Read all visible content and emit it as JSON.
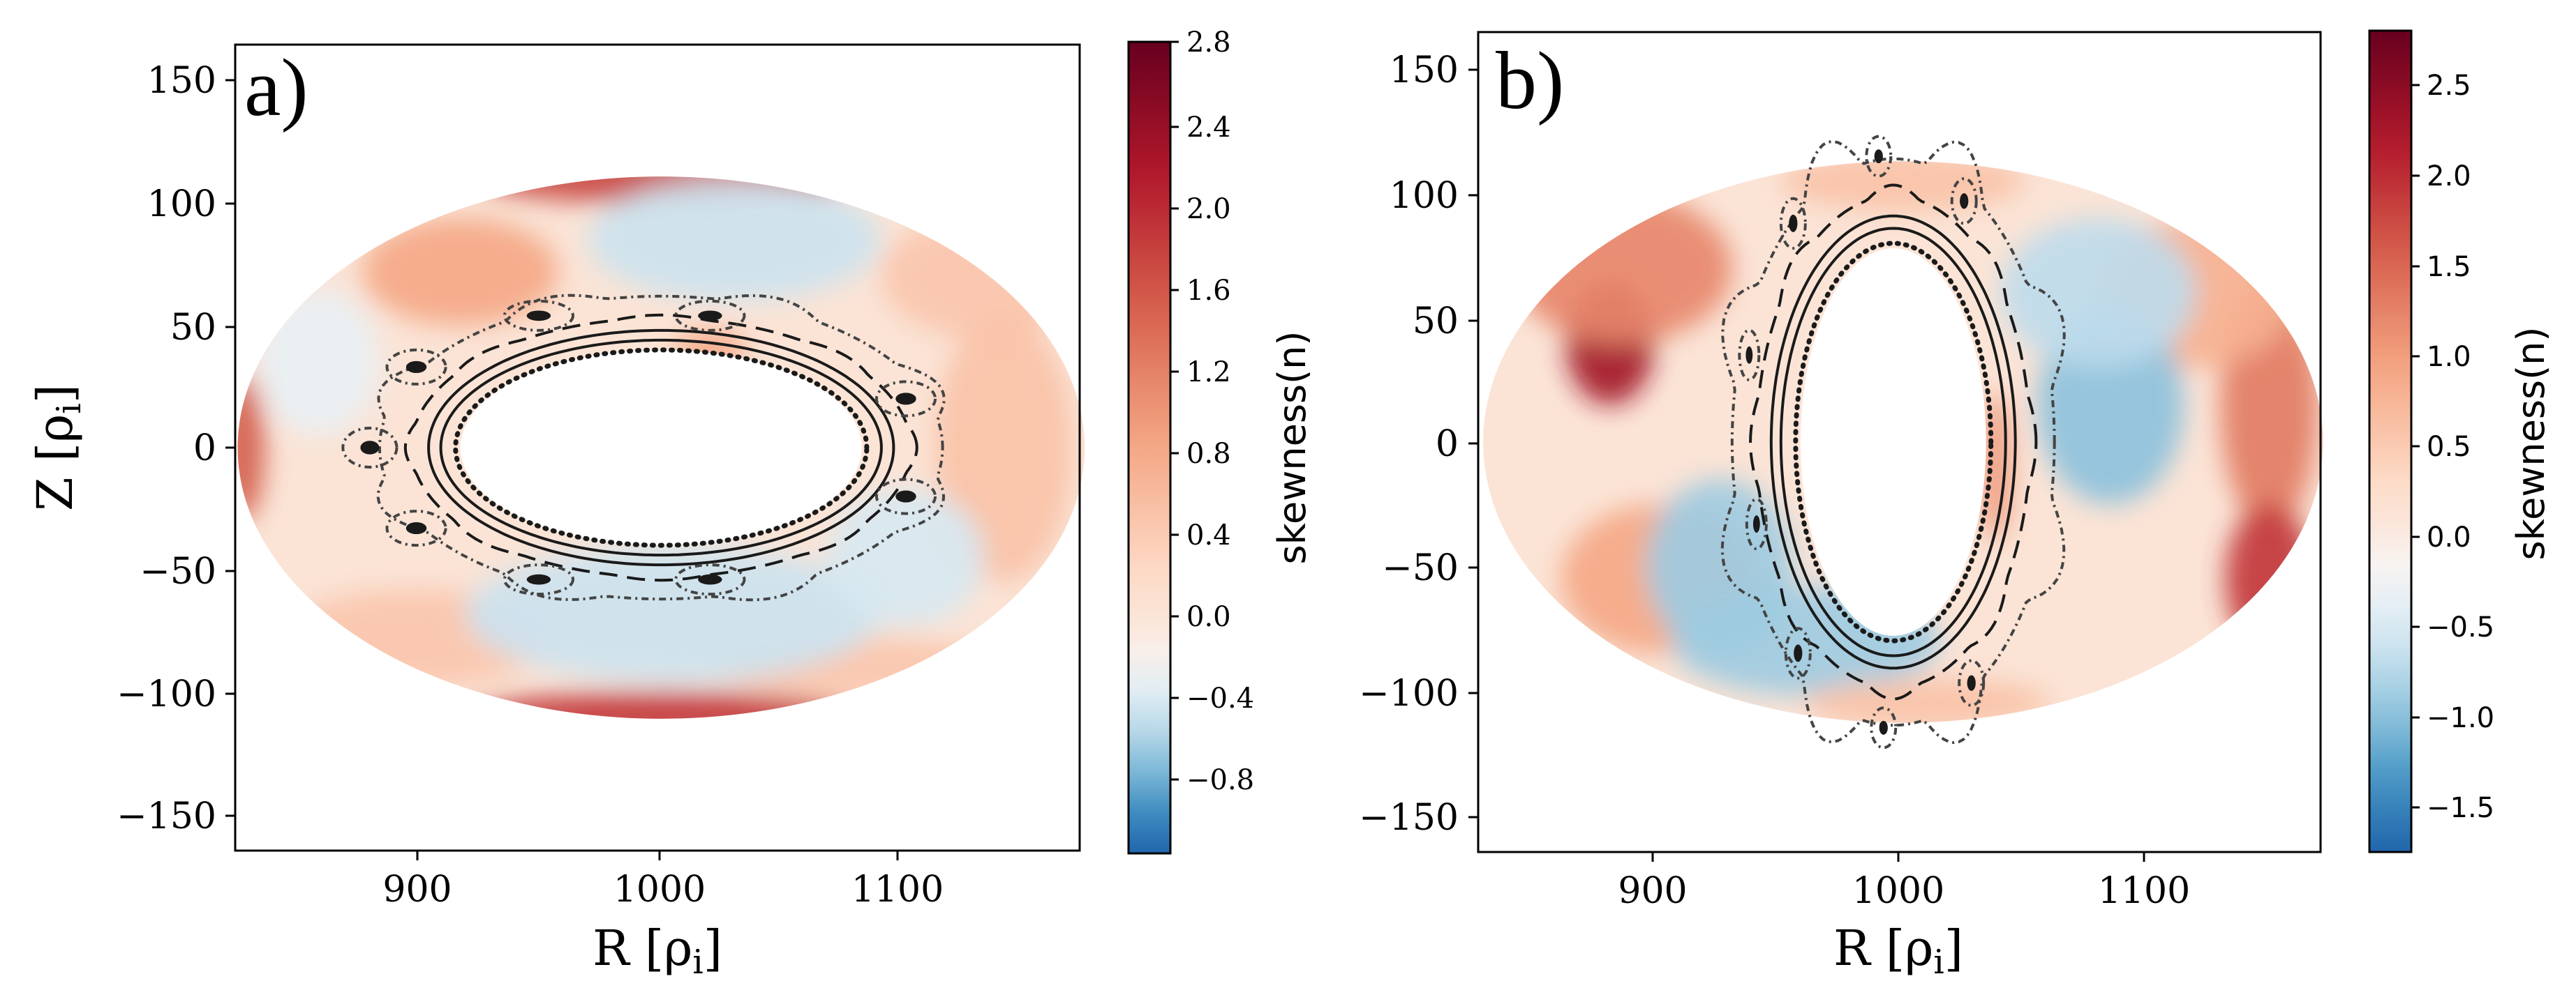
{
  "figure": {
    "colormap": [
      "#2166ac",
      "#4393c3",
      "#92c5de",
      "#d1e5f0",
      "#f7f7f7",
      "#fddbc7",
      "#f4a582",
      "#d6604d",
      "#b2182b",
      "#67001f"
    ],
    "contour_color": "#1a1a1a"
  },
  "chart_data": [
    {
      "type": "heatmap",
      "panel_label": "a)",
      "xlabel": "R [ρ",
      "xlabel_sub": "i",
      "xlabel_end": "]",
      "ylabel": "Z [ρ",
      "ylabel_sub": "i",
      "ylabel_end": "]",
      "xlim": [
        826,
        1171
      ],
      "ylim": [
        -165,
        165
      ],
      "xticks": [
        900,
        1000,
        1100
      ],
      "xtick_labels": [
        "900",
        "1000",
        "1100"
      ],
      "yticks": [
        150,
        100,
        50,
        0,
        -50,
        -100,
        -150
      ],
      "ytick_labels": [
        "150",
        "100",
        "50",
        "0",
        "−50",
        "−100",
        "−150"
      ],
      "domain": {
        "center_R": 1000,
        "center_Z": 0,
        "semi_R": 173,
        "semi_Z": 111
      },
      "inner_hole": {
        "center_R": 1000,
        "center_Z": 0,
        "semi_R": 82,
        "semi_Z": 40
      },
      "colorbar": {
        "label": "skewness(n)",
        "vmin": -1.0,
        "vmax": 2.8,
        "ticks": [
          2.8,
          2.4,
          2.0,
          1.6,
          1.2,
          0.8,
          0.4,
          0.0,
          -0.4,
          -0.8
        ],
        "tick_labels": [
          "2.8",
          "2.4",
          "2.0",
          "1.6",
          "1.2",
          "0.8",
          "0.4",
          "0.0",
          "−0.4",
          "−0.8"
        ]
      },
      "field_blobs": [
        {
          "R": 918,
          "Z": 72,
          "rR": 40,
          "rZ": 22,
          "v": 0.9
        },
        {
          "R": 1000,
          "Z": 110,
          "rR": 75,
          "rZ": 10,
          "v": 1.8
        },
        {
          "R": 1000,
          "Z": -110,
          "rR": 80,
          "rZ": 10,
          "v": 1.9
        },
        {
          "R": 829,
          "Z": 0,
          "rR": 9,
          "rZ": 30,
          "v": 1.6
        },
        {
          "R": 1130,
          "Z": 70,
          "rR": 40,
          "rZ": 25,
          "v": 0.55
        },
        {
          "R": 1140,
          "Z": 0,
          "rR": 28,
          "rZ": 55,
          "v": 0.6
        },
        {
          "R": 900,
          "Z": -78,
          "rR": 55,
          "rZ": 20,
          "v": 0.55
        },
        {
          "R": 1080,
          "Z": -90,
          "rR": 60,
          "rZ": 12,
          "v": 0.55
        },
        {
          "R": 1030,
          "Z": 85,
          "rR": 60,
          "rZ": 25,
          "v": -0.35
        },
        {
          "R": 1005,
          "Z": -68,
          "rR": 85,
          "rZ": 28,
          "v": -0.35
        },
        {
          "R": 1100,
          "Z": -45,
          "rR": 32,
          "rZ": 28,
          "v": -0.3
        },
        {
          "R": 860,
          "Z": 35,
          "rR": 25,
          "rZ": 30,
          "v": -0.2
        },
        {
          "R": 1020,
          "Z": 40,
          "rR": 15,
          "rZ": 8,
          "v": 0.9
        }
      ],
      "contours": {
        "solid": [
          {
            "semi_R": 90,
            "semi_Z": 44,
            "n": 1,
            "amp": 0
          },
          {
            "semi_R": 95,
            "semi_Z": 48,
            "n": 1,
            "amp": 0
          }
        ],
        "dashed": [
          {
            "semi_R": 102,
            "semi_Z": 53,
            "n": 8,
            "amp": 2.5
          }
        ],
        "dotted": [
          {
            "semi_R": 84,
            "semi_Z": 40,
            "n": 1,
            "amp": 0
          }
        ],
        "dashdot": [
          {
            "semi_R": 115,
            "semi_Z": 62,
            "n": 8,
            "amp": 8,
            "phase": 0.39
          }
        ],
        "islands": [
          {
            "R": 881,
            "Z": 0,
            "rR": 11,
            "rZ": 8
          },
          {
            "R": 900,
            "Z": 33,
            "rR": 12,
            "rZ": 7
          },
          {
            "R": 900,
            "Z": -33,
            "rR": 12,
            "rZ": 7
          },
          {
            "R": 950,
            "Z": 54,
            "rR": 14,
            "rZ": 6
          },
          {
            "R": 1020,
            "Z": 54,
            "rR": 14,
            "rZ": 6
          },
          {
            "R": 1100,
            "Z": 20,
            "rR": 12,
            "rZ": 7
          },
          {
            "R": 1100,
            "Z": -20,
            "rR": 12,
            "rZ": 7
          },
          {
            "R": 950,
            "Z": -54,
            "rR": 14,
            "rZ": 6
          },
          {
            "R": 1020,
            "Z": -54,
            "rR": 14,
            "rZ": 6
          }
        ]
      }
    },
    {
      "type": "heatmap",
      "panel_label": "b)",
      "xlabel": "R [ρ",
      "xlabel_sub": "i",
      "xlabel_end": "]",
      "xlim": [
        826,
        1171
      ],
      "ylim": [
        -165,
        165
      ],
      "xticks": [
        900,
        1000,
        1100
      ],
      "xtick_labels": [
        "900",
        "1000",
        "1100"
      ],
      "yticks": [
        150,
        100,
        50,
        0,
        -50,
        -100,
        -150
      ],
      "ytick_labels": [
        "150",
        "100",
        "50",
        "0",
        "−50",
        "−100",
        "−150"
      ],
      "domain": {
        "center_R": 1000,
        "center_Z": 0,
        "semi_R": 172,
        "semi_Z": 113
      },
      "inner_hole": {
        "center_R": 996,
        "center_Z": 0,
        "semi_R": 38,
        "semi_Z": 78
      },
      "colorbar": {
        "label": "skewness(n)",
        "vmin": -1.75,
        "vmax": 2.8,
        "ticks": [
          2.5,
          2.0,
          1.5,
          1.0,
          0.5,
          0.0,
          -0.5,
          -1.0,
          -1.5
        ],
        "tick_labels": [
          "2.5",
          "2.0",
          "1.5",
          "1.0",
          "0.5",
          "0.0",
          "−0.5",
          "−1.0",
          "−1.5"
        ]
      },
      "field_blobs": [
        {
          "R": 880,
          "Z": 40,
          "rR": 18,
          "rZ": 25,
          "v": 2.3
        },
        {
          "R": 885,
          "Z": 70,
          "rR": 45,
          "rZ": 30,
          "v": 1.2
        },
        {
          "R": 900,
          "Z": -55,
          "rR": 40,
          "rZ": 30,
          "v": 0.9
        },
        {
          "R": 1150,
          "Z": 15,
          "rR": 20,
          "rZ": 50,
          "v": 1.3
        },
        {
          "R": 1150,
          "Z": -55,
          "rR": 18,
          "rZ": 30,
          "v": 1.9
        },
        {
          "R": 1120,
          "Z": 60,
          "rR": 40,
          "rZ": 30,
          "v": 0.8
        },
        {
          "R": 1085,
          "Z": 15,
          "rR": 30,
          "rZ": 40,
          "v": -1.0
        },
        {
          "R": 1080,
          "Z": 60,
          "rR": 40,
          "rZ": 30,
          "v": -0.7
        },
        {
          "R": 925,
          "Z": -50,
          "rR": 30,
          "rZ": 35,
          "v": -0.9
        },
        {
          "R": 960,
          "Z": -80,
          "rR": 55,
          "rZ": 22,
          "v": -0.9
        },
        {
          "R": 1000,
          "Z": 105,
          "rR": 50,
          "rZ": 12,
          "v": 0.6
        },
        {
          "R": 1010,
          "Z": -105,
          "rR": 50,
          "rZ": 10,
          "v": 0.6
        },
        {
          "R": 1038,
          "Z": -10,
          "rR": 6,
          "rZ": 30,
          "v": 1.1
        }
      ],
      "contours": {
        "solid": [
          {
            "semi_R": 46,
            "semi_Z": 86,
            "n": 1,
            "amp": 0
          },
          {
            "semi_R": 50,
            "semi_Z": 91,
            "n": 1,
            "amp": 0
          }
        ],
        "dashed": [
          {
            "semi_R": 56,
            "semi_Z": 99,
            "n": 8,
            "amp": 2.5
          }
        ],
        "dotted": [
          {
            "semi_R": 40,
            "semi_Z": 80,
            "n": 1,
            "amp": 0
          }
        ],
        "dashdot": [
          {
            "semi_R": 66,
            "semi_Z": 114,
            "n": 8,
            "amp": 9,
            "phase": 0.39
          }
        ],
        "islands": [
          {
            "R": 990,
            "Z": 115,
            "rR": 5,
            "rZ": 8
          },
          {
            "R": 1025,
            "Z": 97,
            "rR": 5,
            "rZ": 9
          },
          {
            "R": 955,
            "Z": 88,
            "rR": 5,
            "rZ": 10
          },
          {
            "R": 937,
            "Z": 35,
            "rR": 4,
            "rZ": 10
          },
          {
            "R": 940,
            "Z": -33,
            "rR": 4,
            "rZ": 10
          },
          {
            "R": 957,
            "Z": -85,
            "rR": 5,
            "rZ": 10
          },
          {
            "R": 1028,
            "Z": -97,
            "rR": 5,
            "rZ": 9
          },
          {
            "R": 992,
            "Z": -115,
            "rR": 5,
            "rZ": 8
          }
        ]
      }
    }
  ]
}
